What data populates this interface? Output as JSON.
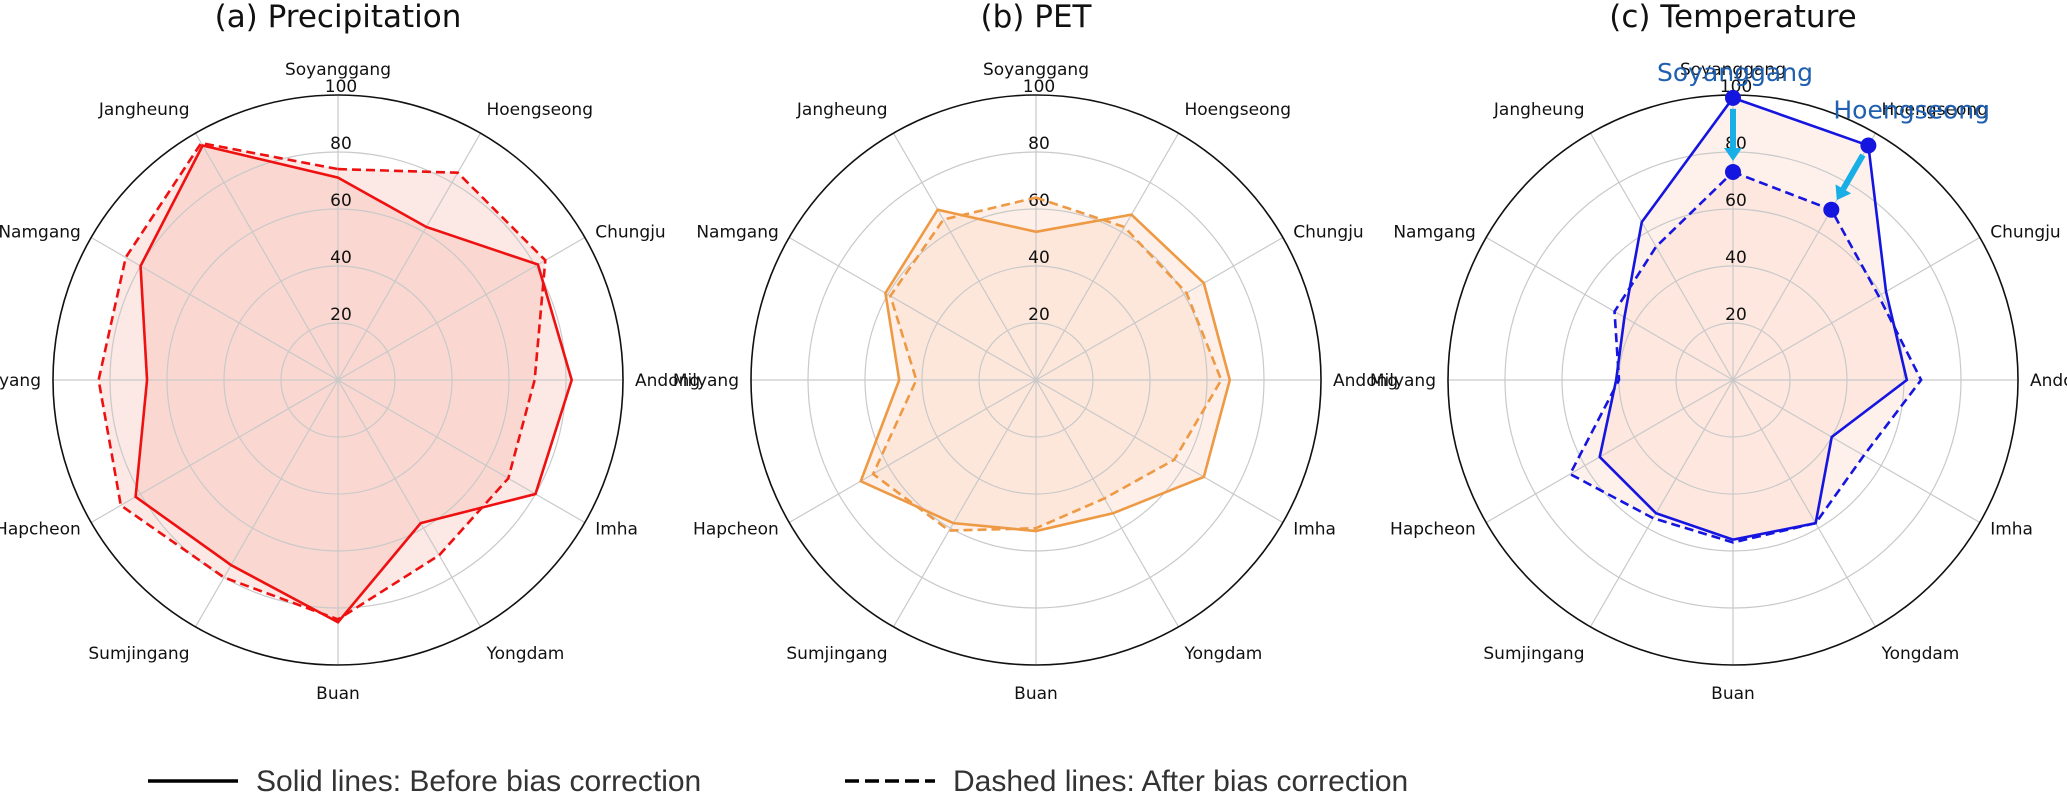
{
  "legend": {
    "solid_label": "Solid lines: Before bias correction",
    "dashed_label": "Dashed lines: After bias correction"
  },
  "chart_data": [
    {
      "type": "radar",
      "title": "(a) Precipitation",
      "categories": [
        "Soyanggang",
        "Hoengseong",
        "Chungju",
        "Andong",
        "Imha",
        "Yongdam",
        "Buan",
        "Sumjingang",
        "Hapcheon",
        "Milyang",
        "Namgang",
        "Jangheung"
      ],
      "rlim": [
        0,
        100
      ],
      "rticks": [
        20,
        40,
        60,
        80,
        100
      ],
      "color": "#ee1111",
      "fill_color": "#f7b9ab",
      "fill_opacity": 0.32,
      "series": [
        {
          "name": "Before bias correction",
          "line": "solid",
          "values": [
            71,
            62,
            81,
            82,
            80,
            58,
            85,
            75,
            82,
            67,
            80,
            95
          ]
        },
        {
          "name": "After bias correction",
          "line": "dashed",
          "values": [
            74,
            84,
            84,
            69,
            69,
            71,
            84,
            80,
            88,
            84,
            86,
            96
          ]
        }
      ]
    },
    {
      "type": "radar",
      "title": "(b) PET",
      "categories": [
        "Soyanggang",
        "Hoengseong",
        "Chungju",
        "Andong",
        "Imha",
        "Yongdam",
        "Buan",
        "Sumjingang",
        "Hapcheon",
        "Milyang",
        "Namgang",
        "Jangheung"
      ],
      "rlim": [
        0,
        100
      ],
      "rticks": [
        20,
        40,
        60,
        80,
        100
      ],
      "color": "#ee9944",
      "fill_color": "#fcd7c4",
      "fill_opacity": 0.38,
      "series": [
        {
          "name": "Before bias correction",
          "line": "solid",
          "values": [
            52,
            67,
            68,
            68,
            68,
            54,
            53,
            58,
            71,
            48,
            61,
            69
          ]
        },
        {
          "name": "After bias correction",
          "line": "dashed",
          "values": [
            64,
            62,
            61,
            65,
            56,
            48,
            52,
            61,
            66,
            42,
            59,
            65
          ]
        }
      ]
    },
    {
      "type": "radar",
      "title": "(c) Temperature",
      "categories": [
        "Soyanggang",
        "Hoengseong",
        "Chungju",
        "Andong",
        "Imha",
        "Yongdam",
        "Buan",
        "Sumjingang",
        "Hapcheon",
        "Milyang",
        "Namgang",
        "Jangheung"
      ],
      "rlim": [
        0,
        100
      ],
      "rticks": [
        20,
        40,
        60,
        80,
        100
      ],
      "color": "#1515e0",
      "fill_color": "#fbd4c4",
      "fill_opacity": 0.32,
      "series": [
        {
          "name": "Before bias correction",
          "line": "solid",
          "values": [
            99,
            95,
            62,
            61,
            40,
            58,
            56,
            54,
            54,
            41,
            44,
            64
          ]
        },
        {
          "name": "After bias correction",
          "line": "dashed",
          "values": [
            73,
            69,
            59,
            66,
            53,
            58,
            57,
            56,
            66,
            40,
            48,
            54
          ]
        }
      ],
      "annotations": [
        {
          "text": "Soyanggang",
          "category": "Soyanggang",
          "from": 99,
          "to": 73,
          "color": "#1f5fb0",
          "arrow_color": "#18aee6",
          "marker_color": "#1515e0"
        },
        {
          "text": "Hoengseong",
          "category": "Hoengseong",
          "from": 95,
          "to": 69,
          "color": "#1f5fb0",
          "arrow_color": "#18aee6",
          "marker_color": "#1515e0"
        }
      ]
    }
  ]
}
